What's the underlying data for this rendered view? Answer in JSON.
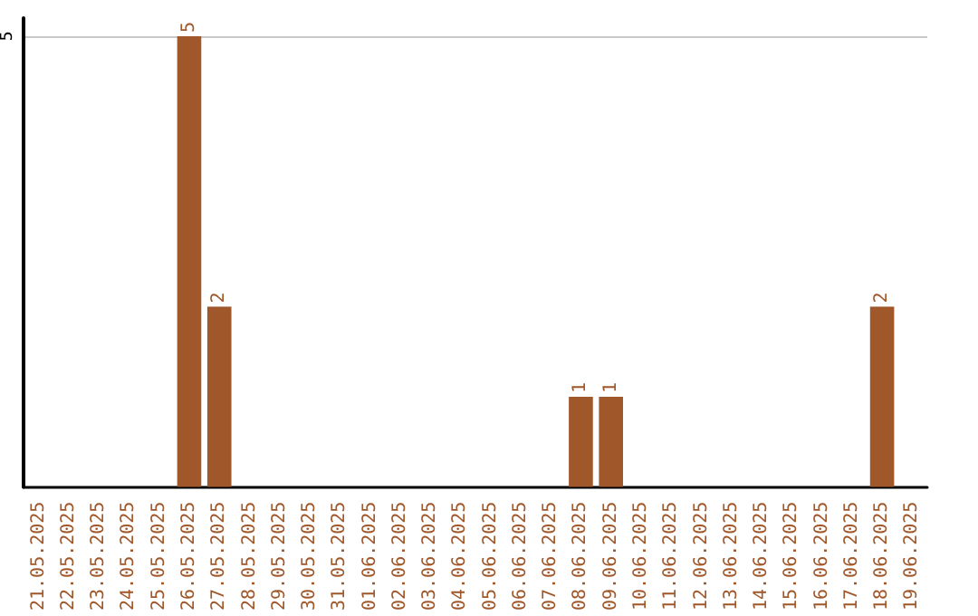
{
  "chart_data": {
    "type": "bar",
    "categories": [
      "21.05.2025",
      "22.05.2025",
      "23.05.2025",
      "24.05.2025",
      "25.05.2025",
      "26.05.2025",
      "27.05.2025",
      "28.05.2025",
      "29.05.2025",
      "30.05.2025",
      "31.05.2025",
      "01.06.2025",
      "02.06.2025",
      "03.06.2025",
      "04.06.2025",
      "05.06.2025",
      "06.06.2025",
      "07.06.2025",
      "08.06.2025",
      "09.06.2025",
      "10.06.2025",
      "11.06.2025",
      "12.06.2025",
      "13.06.2025",
      "14.06.2025",
      "15.06.2025",
      "16.06.2025",
      "17.06.2025",
      "18.06.2025",
      "19.06.2025"
    ],
    "values": [
      0,
      0,
      0,
      0,
      0,
      5,
      2,
      0,
      0,
      0,
      0,
      0,
      0,
      0,
      0,
      0,
      0,
      0,
      1,
      1,
      0,
      0,
      0,
      0,
      0,
      0,
      0,
      0,
      2,
      0
    ],
    "value_labels": [
      null,
      null,
      null,
      null,
      null,
      "5",
      "2",
      null,
      null,
      null,
      null,
      null,
      null,
      null,
      null,
      null,
      null,
      null,
      "1",
      "1",
      null,
      null,
      null,
      null,
      null,
      null,
      null,
      null,
      "2",
      null
    ],
    "color": "#a0572a",
    "ylim": [
      0,
      5.2
    ],
    "yticks": [
      5
    ],
    "grid": "y"
  }
}
